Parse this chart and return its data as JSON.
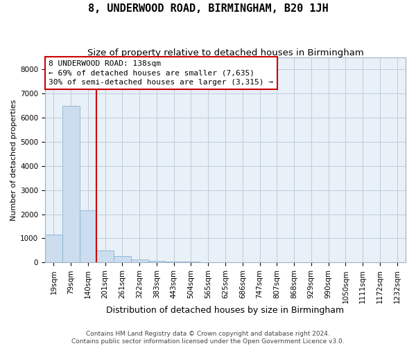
{
  "title": "8, UNDERWOOD ROAD, BIRMINGHAM, B20 1JH",
  "subtitle": "Size of property relative to detached houses in Birmingham",
  "xlabel": "Distribution of detached houses by size in Birmingham",
  "ylabel": "Number of detached properties",
  "categories": [
    "19sqm",
    "79sqm",
    "140sqm",
    "201sqm",
    "261sqm",
    "322sqm",
    "383sqm",
    "443sqm",
    "504sqm",
    "565sqm",
    "625sqm",
    "686sqm",
    "747sqm",
    "807sqm",
    "868sqm",
    "929sqm",
    "990sqm",
    "1050sqm",
    "1111sqm",
    "1172sqm",
    "1232sqm"
  ],
  "values": [
    1150,
    6500,
    2150,
    500,
    260,
    130,
    75,
    45,
    30,
    20,
    15,
    10,
    8,
    6,
    5,
    4,
    3,
    3,
    2,
    2,
    1
  ],
  "bar_color": "#ccddf0",
  "bar_edge_color": "#7aaac8",
  "highlight_index": 2,
  "annotation_box_text": "8 UNDERWOOD ROAD: 138sqm\n← 69% of detached houses are smaller (7,635)\n30% of semi-detached houses are larger (3,315) →",
  "ylim": [
    0,
    8500
  ],
  "yticks": [
    0,
    1000,
    2000,
    3000,
    4000,
    5000,
    6000,
    7000,
    8000
  ],
  "red_line_color": "#cc0000",
  "box_edge_color": "#cc0000",
  "grid_color": "#c0ccd8",
  "background_color": "#e8f0f8",
  "footer_text": "Contains HM Land Registry data © Crown copyright and database right 2024.\nContains public sector information licensed under the Open Government Licence v3.0.",
  "title_fontsize": 11,
  "subtitle_fontsize": 9.5,
  "xlabel_fontsize": 9,
  "ylabel_fontsize": 8,
  "tick_fontsize": 7.5,
  "annotation_fontsize": 8
}
